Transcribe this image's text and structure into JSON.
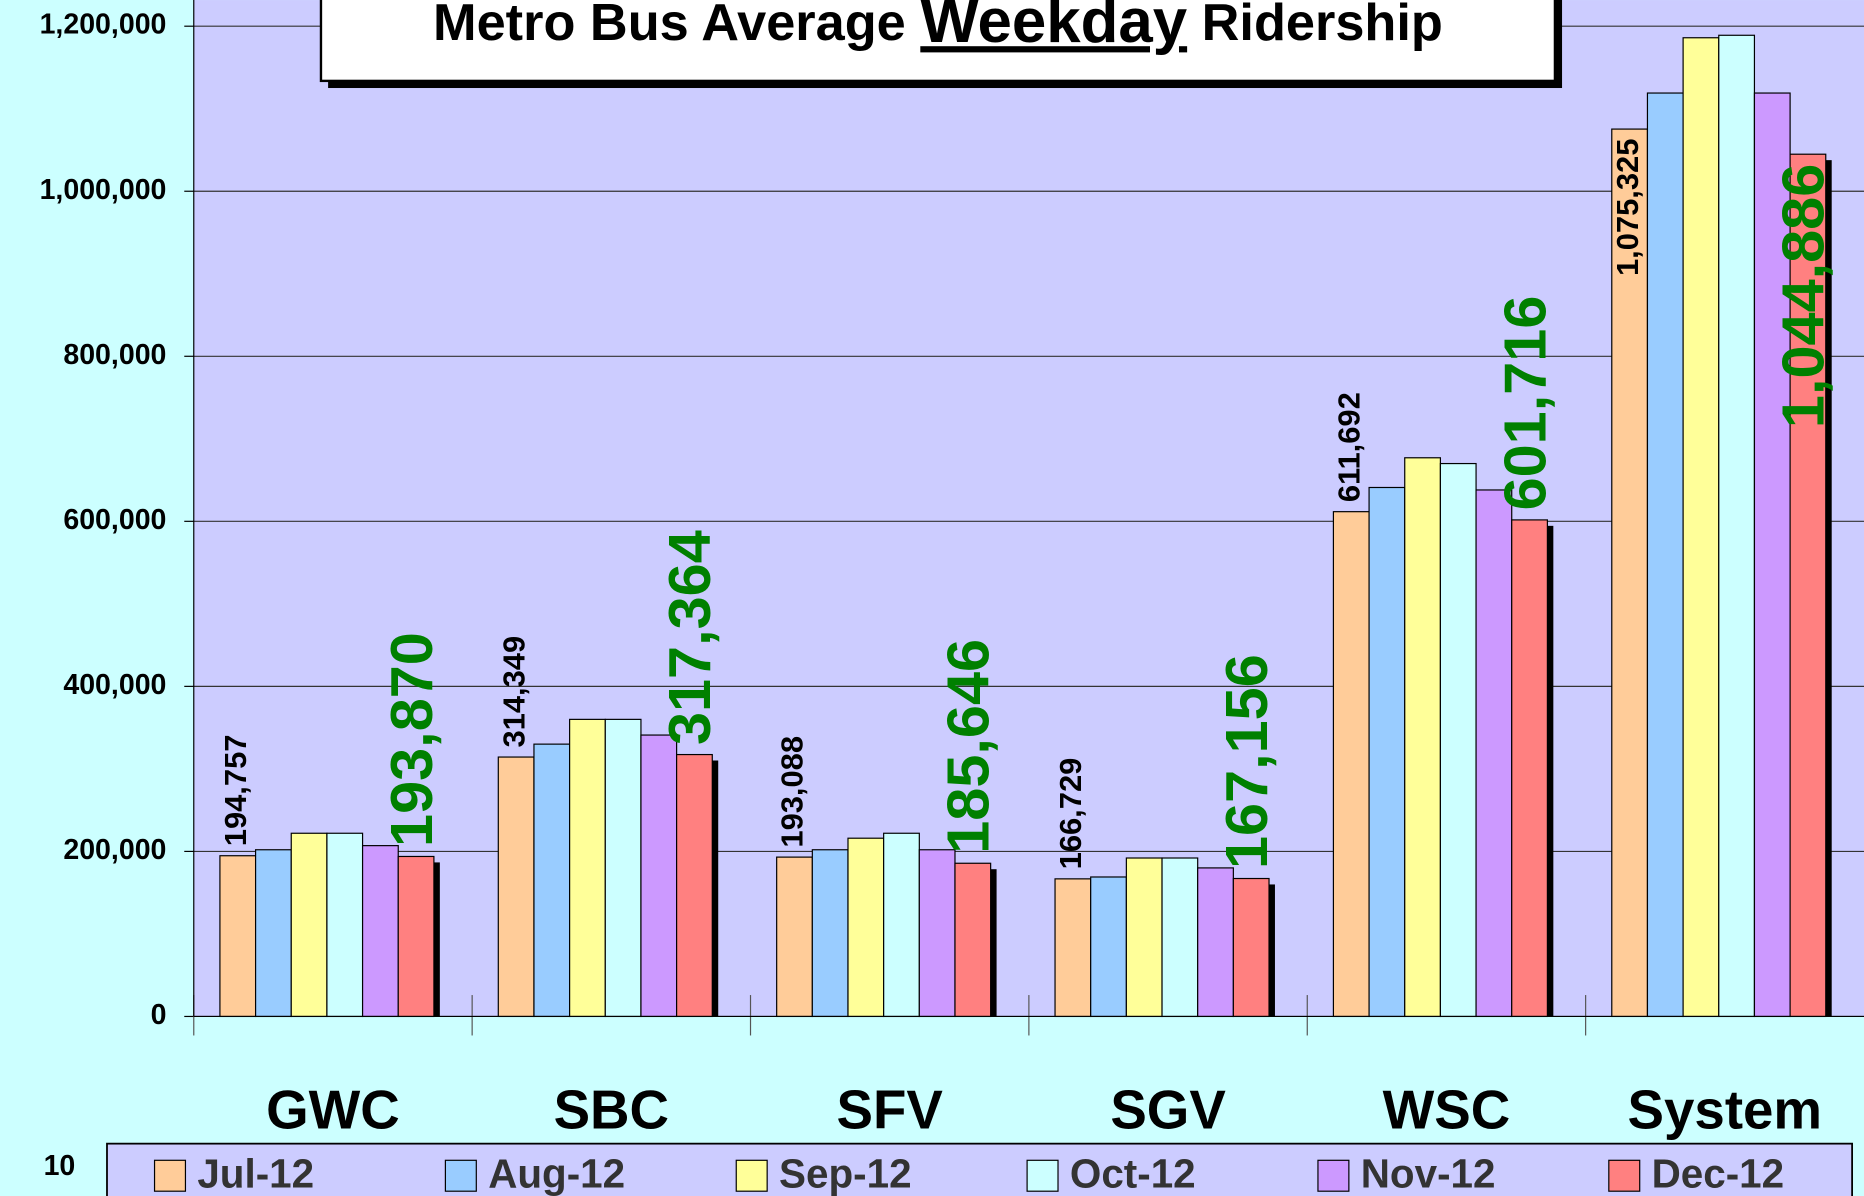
{
  "slide_number": "10",
  "chart_data": {
    "type": "bar",
    "title": "Metro Bus Average Weekday Ridership",
    "title_emphasis": "Weekday",
    "categories": [
      "GWC",
      "SBC",
      "SFV",
      "SGV",
      "WSC",
      "System"
    ],
    "series": [
      {
        "name": "Jul-12",
        "color": "#ffcc99",
        "values": [
          194757,
          314349,
          193088,
          166729,
          611692,
          1075325
        ],
        "value_labels": [
          "194,757",
          "314,349",
          "193,088",
          "166,729",
          "611,692",
          "1,075,325"
        ]
      },
      {
        "name": "Aug-12",
        "color": "#99ccff",
        "values": [
          202000,
          330000,
          202000,
          169000,
          641000,
          1119000
        ]
      },
      {
        "name": "Sep-12",
        "color": "#ffff99",
        "values": [
          222000,
          360000,
          216000,
          192000,
          677000,
          1186000
        ]
      },
      {
        "name": "Oct-12",
        "color": "#ccffff",
        "values": [
          222000,
          360000,
          222000,
          192000,
          670000,
          1189000
        ]
      },
      {
        "name": "Nov-12",
        "color": "#cc99ff",
        "values": [
          207000,
          341000,
          202000,
          180000,
          638000,
          1119000
        ]
      },
      {
        "name": "Dec-12",
        "color": "#ff8080",
        "values": [
          193870,
          317364,
          185646,
          167156,
          601716,
          1044886
        ],
        "value_labels": [
          "193,870",
          "317,364",
          "185,646",
          "167,156",
          "601,716",
          "1,044,886"
        ]
      }
    ],
    "ylim": [
      0,
      1200000
    ],
    "yticks": [
      0,
      {
        "value": 200000,
        "label": "200,000"
      },
      {
        "value": 400000,
        "label": "400,000"
      },
      {
        "value": 600000,
        "label": "600,000"
      },
      {
        "value": 800000,
        "label": "800,000"
      },
      {
        "value": 1000000,
        "label": "1,000,000"
      },
      {
        "value": 1200000,
        "label": "1,200,000"
      }
    ],
    "grid": true,
    "plot_color": "#ccccff",
    "legend": "bottom"
  }
}
